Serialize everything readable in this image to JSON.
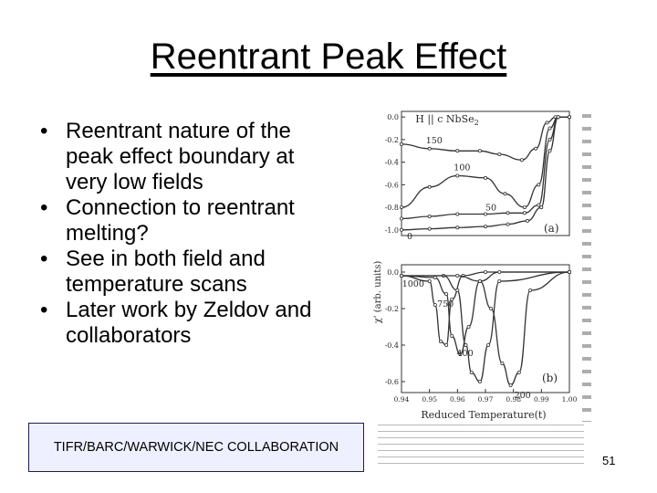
{
  "slide": {
    "title": "Reentrant Peak Effect",
    "bullets": [
      "Reentrant nature of the peak effect boundary at very low fields",
      "Connection to reentrant melting?",
      "See in both field and temperature scans",
      "Later work by Zeldov and collaborators"
    ],
    "collaboration_label": "TIFR/BARC/WARWICK/NEC COLLABORATION",
    "page_number": "51"
  },
  "figure": {
    "ylabel": "χ' (arb. units)",
    "xlabel": "Reduced Temperature(t)",
    "panel_a": {
      "header": "H || c   NbSe",
      "header_sub": "2",
      "panel_label": "(a)",
      "y_ticks": [
        "0.0",
        "-0.2",
        "-0.4",
        "-0.6",
        "-0.8",
        "-1.0"
      ],
      "curve_labels": [
        "150",
        "100",
        "50",
        "0"
      ]
    },
    "panel_b": {
      "panel_label": "(b)",
      "y_ticks": [
        "0.0",
        "-0.2",
        "-0.4",
        "-0.6"
      ],
      "x_ticks": [
        "0.94",
        "0.95",
        "0.96",
        "0.97",
        "0.98",
        "0.99",
        "1.00"
      ],
      "curve_labels": [
        "1000",
        "750",
        "400",
        "200"
      ]
    }
  },
  "chart_data": [
    {
      "type": "line",
      "title": "",
      "xlabel": "Reduced Temperature(t)",
      "ylabel": "χ' (arb. units)",
      "xlim": [
        0.94,
        1.0
      ],
      "ylim": [
        -1.05,
        0.05
      ],
      "legend": "labels on curves",
      "series": [
        {
          "name": "150",
          "x": [
            0.94,
            0.95,
            0.96,
            0.968,
            0.975,
            0.983,
            0.988,
            0.992,
            0.995,
            1.0
          ],
          "y": [
            -0.24,
            -0.28,
            -0.3,
            -0.3,
            -0.33,
            -0.38,
            -0.28,
            -0.05,
            0.0,
            0.0
          ]
        },
        {
          "name": "100",
          "x": [
            0.94,
            0.95,
            0.96,
            0.97,
            0.977,
            0.984,
            0.989,
            0.993,
            0.996,
            1.0
          ],
          "y": [
            -0.8,
            -0.62,
            -0.52,
            -0.54,
            -0.68,
            -0.8,
            -0.6,
            -0.1,
            0.0,
            0.0
          ]
        },
        {
          "name": "50",
          "x": [
            0.94,
            0.95,
            0.96,
            0.97,
            0.978,
            0.984,
            0.989,
            0.993,
            0.996,
            1.0
          ],
          "y": [
            -0.9,
            -0.88,
            -0.86,
            -0.86,
            -0.85,
            -0.85,
            -0.78,
            -0.2,
            0.0,
            0.0
          ]
        },
        {
          "name": "0",
          "x": [
            0.94,
            0.95,
            0.96,
            0.97,
            0.978,
            0.985,
            0.99,
            0.993,
            0.996,
            1.0
          ],
          "y": [
            -1.0,
            -0.99,
            -0.98,
            -0.97,
            -0.95,
            -0.92,
            -0.8,
            -0.3,
            0.0,
            0.0
          ]
        }
      ]
    },
    {
      "type": "line",
      "title": "",
      "xlabel": "Reduced Temperature(t)",
      "ylabel": "χ' (arb. units)",
      "xlim": [
        0.94,
        1.0
      ],
      "ylim": [
        -0.66,
        0.04
      ],
      "legend": "labels on curves",
      "series": [
        {
          "name": "1000",
          "x": [
            0.94,
            0.95,
            0.952,
            0.954,
            0.956,
            0.958,
            0.962,
            0.97,
            1.0
          ],
          "y": [
            -0.02,
            -0.05,
            -0.18,
            -0.38,
            -0.4,
            -0.15,
            -0.02,
            0.0,
            0.0
          ]
        },
        {
          "name": "750",
          "x": [
            0.94,
            0.952,
            0.956,
            0.958,
            0.961,
            0.964,
            0.968,
            0.975,
            1.0
          ],
          "y": [
            -0.02,
            -0.03,
            -0.12,
            -0.35,
            -0.45,
            -0.3,
            -0.05,
            0.0,
            0.0
          ]
        },
        {
          "name": "400",
          "x": [
            0.94,
            0.955,
            0.96,
            0.963,
            0.965,
            0.968,
            0.971,
            0.975,
            1.0
          ],
          "y": [
            -0.02,
            -0.02,
            -0.1,
            -0.4,
            -0.55,
            -0.6,
            -0.4,
            -0.05,
            0.0
          ]
        },
        {
          "name": "200",
          "x": [
            0.94,
            0.96,
            0.968,
            0.972,
            0.976,
            0.979,
            0.982,
            0.986,
            1.0
          ],
          "y": [
            -0.02,
            -0.02,
            -0.05,
            -0.2,
            -0.5,
            -0.62,
            -0.55,
            -0.1,
            0.0
          ]
        }
      ]
    }
  ]
}
